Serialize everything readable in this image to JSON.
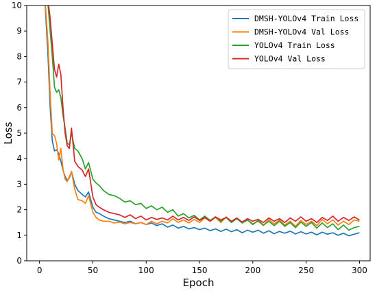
{
  "chart_data": {
    "type": "line",
    "xlabel": "Epoch",
    "ylabel": "Loss",
    "xlim": [
      -12,
      310
    ],
    "ylim": [
      0,
      10
    ],
    "xticks": [
      0,
      50,
      100,
      150,
      200,
      250,
      300
    ],
    "yticks": [
      0,
      1,
      2,
      3,
      4,
      5,
      6,
      7,
      8,
      9,
      10
    ],
    "grid": false,
    "legend_position": "top-right",
    "series": [
      {
        "name": "DMSH-YOLOv4 Train Loss",
        "color": "#1f77b4",
        "x": [
          0,
          5,
          8,
          10,
          12,
          14,
          16,
          18,
          20,
          22,
          24,
          26,
          28,
          30,
          33,
          36,
          40,
          43,
          46,
          50,
          53,
          56,
          60,
          65,
          70,
          75,
          80,
          85,
          90,
          95,
          100,
          105,
          110,
          115,
          120,
          125,
          130,
          135,
          140,
          145,
          150,
          155,
          160,
          165,
          170,
          175,
          180,
          185,
          190,
          195,
          200,
          205,
          210,
          215,
          220,
          225,
          230,
          235,
          240,
          245,
          250,
          255,
          260,
          265,
          270,
          275,
          280,
          285,
          290,
          295,
          300
        ],
        "y": [
          10.5,
          10.2,
          8.0,
          6.0,
          4.7,
          4.3,
          4.35,
          4.2,
          3.9,
          3.55,
          3.3,
          3.15,
          3.25,
          3.5,
          3.0,
          2.75,
          2.6,
          2.5,
          2.7,
          2.1,
          1.9,
          1.85,
          1.75,
          1.65,
          1.6,
          1.55,
          1.5,
          1.55,
          1.45,
          1.5,
          1.42,
          1.48,
          1.38,
          1.45,
          1.32,
          1.4,
          1.28,
          1.35,
          1.25,
          1.3,
          1.22,
          1.28,
          1.18,
          1.25,
          1.15,
          1.24,
          1.14,
          1.22,
          1.1,
          1.2,
          1.12,
          1.2,
          1.08,
          1.18,
          1.06,
          1.15,
          1.08,
          1.16,
          1.05,
          1.14,
          1.05,
          1.12,
          1.02,
          1.12,
          1.04,
          1.1,
          1.0,
          1.08,
          0.98,
          1.04,
          1.1
        ]
      },
      {
        "name": "DMSH-YOLOv4 Val Loss",
        "color": "#ff7f0e",
        "x": [
          0,
          5,
          8,
          10,
          12,
          14,
          16,
          18,
          20,
          22,
          24,
          26,
          28,
          30,
          33,
          36,
          40,
          43,
          46,
          50,
          53,
          56,
          60,
          65,
          70,
          75,
          80,
          85,
          90,
          95,
          100,
          105,
          110,
          115,
          120,
          125,
          130,
          135,
          140,
          145,
          150,
          155,
          160,
          165,
          170,
          175,
          180,
          185,
          190,
          195,
          200,
          205,
          210,
          215,
          220,
          225,
          230,
          235,
          240,
          245,
          250,
          255,
          260,
          265,
          270,
          275,
          280,
          285,
          290,
          295,
          300
        ],
        "y": [
          10.5,
          10.3,
          8.5,
          6.5,
          5.0,
          4.9,
          4.6,
          3.95,
          4.4,
          3.6,
          3.2,
          3.1,
          3.3,
          3.5,
          2.8,
          2.4,
          2.35,
          2.25,
          2.55,
          1.9,
          1.7,
          1.6,
          1.55,
          1.55,
          1.48,
          1.52,
          1.45,
          1.5,
          1.45,
          1.5,
          1.42,
          1.55,
          1.45,
          1.55,
          1.48,
          1.65,
          1.5,
          1.6,
          1.48,
          1.62,
          1.5,
          1.68,
          1.55,
          1.7,
          1.5,
          1.72,
          1.55,
          1.65,
          1.48,
          1.6,
          1.45,
          1.55,
          1.38,
          1.62,
          1.45,
          1.6,
          1.4,
          1.55,
          1.35,
          1.58,
          1.42,
          1.55,
          1.38,
          1.62,
          1.45,
          1.6,
          1.4,
          1.55,
          1.42,
          1.6,
          1.55
        ]
      },
      {
        "name": "YOLOv4 Train Loss",
        "color": "#2ca02c",
        "x": [
          0,
          5,
          8,
          10,
          12,
          14,
          16,
          18,
          20,
          22,
          24,
          26,
          28,
          30,
          33,
          36,
          40,
          43,
          46,
          50,
          53,
          56,
          60,
          65,
          70,
          75,
          80,
          85,
          90,
          95,
          100,
          105,
          110,
          115,
          120,
          125,
          130,
          135,
          140,
          145,
          150,
          155,
          160,
          165,
          170,
          175,
          180,
          185,
          190,
          195,
          200,
          205,
          210,
          215,
          220,
          225,
          230,
          235,
          240,
          245,
          250,
          255,
          260,
          265,
          270,
          275,
          280,
          285,
          290,
          295,
          300
        ],
        "y": [
          10.5,
          10.4,
          10.0,
          9.0,
          8.0,
          6.8,
          6.6,
          6.7,
          6.4,
          5.7,
          5.2,
          4.6,
          4.55,
          5.0,
          4.4,
          4.3,
          4.0,
          3.6,
          3.85,
          3.2,
          3.05,
          2.95,
          2.75,
          2.6,
          2.55,
          2.45,
          2.3,
          2.35,
          2.2,
          2.25,
          2.05,
          2.15,
          2.0,
          2.1,
          1.9,
          2.0,
          1.75,
          1.85,
          1.68,
          1.78,
          1.6,
          1.75,
          1.58,
          1.72,
          1.55,
          1.7,
          1.5,
          1.65,
          1.48,
          1.6,
          1.42,
          1.58,
          1.4,
          1.55,
          1.38,
          1.55,
          1.35,
          1.5,
          1.3,
          1.52,
          1.35,
          1.5,
          1.28,
          1.48,
          1.3,
          1.45,
          1.22,
          1.4,
          1.2,
          1.3,
          1.35
        ]
      },
      {
        "name": "YOLOv4 Val Loss",
        "color": "#d62728",
        "x": [
          0,
          5,
          8,
          10,
          12,
          14,
          16,
          18,
          20,
          22,
          24,
          26,
          28,
          30,
          33,
          36,
          40,
          43,
          46,
          50,
          53,
          56,
          60,
          65,
          70,
          75,
          80,
          85,
          90,
          95,
          100,
          105,
          110,
          115,
          120,
          125,
          130,
          135,
          140,
          145,
          150,
          155,
          160,
          165,
          170,
          175,
          180,
          185,
          190,
          195,
          200,
          205,
          210,
          215,
          220,
          225,
          230,
          235,
          240,
          245,
          250,
          255,
          260,
          265,
          270,
          275,
          280,
          285,
          290,
          295,
          300
        ],
        "y": [
          10.5,
          10.4,
          10.2,
          9.5,
          8.5,
          7.5,
          7.2,
          7.7,
          7.3,
          6.0,
          5.0,
          4.5,
          4.4,
          5.2,
          3.9,
          3.7,
          3.55,
          3.3,
          3.6,
          2.5,
          2.2,
          2.1,
          2.0,
          1.9,
          1.85,
          1.8,
          1.7,
          1.8,
          1.65,
          1.75,
          1.6,
          1.7,
          1.62,
          1.68,
          1.6,
          1.75,
          1.6,
          1.7,
          1.58,
          1.72,
          1.58,
          1.7,
          1.55,
          1.72,
          1.6,
          1.7,
          1.55,
          1.68,
          1.52,
          1.65,
          1.55,
          1.62,
          1.5,
          1.68,
          1.55,
          1.65,
          1.5,
          1.68,
          1.55,
          1.72,
          1.55,
          1.65,
          1.5,
          1.7,
          1.58,
          1.75,
          1.55,
          1.7,
          1.58,
          1.72,
          1.6
        ]
      }
    ]
  }
}
